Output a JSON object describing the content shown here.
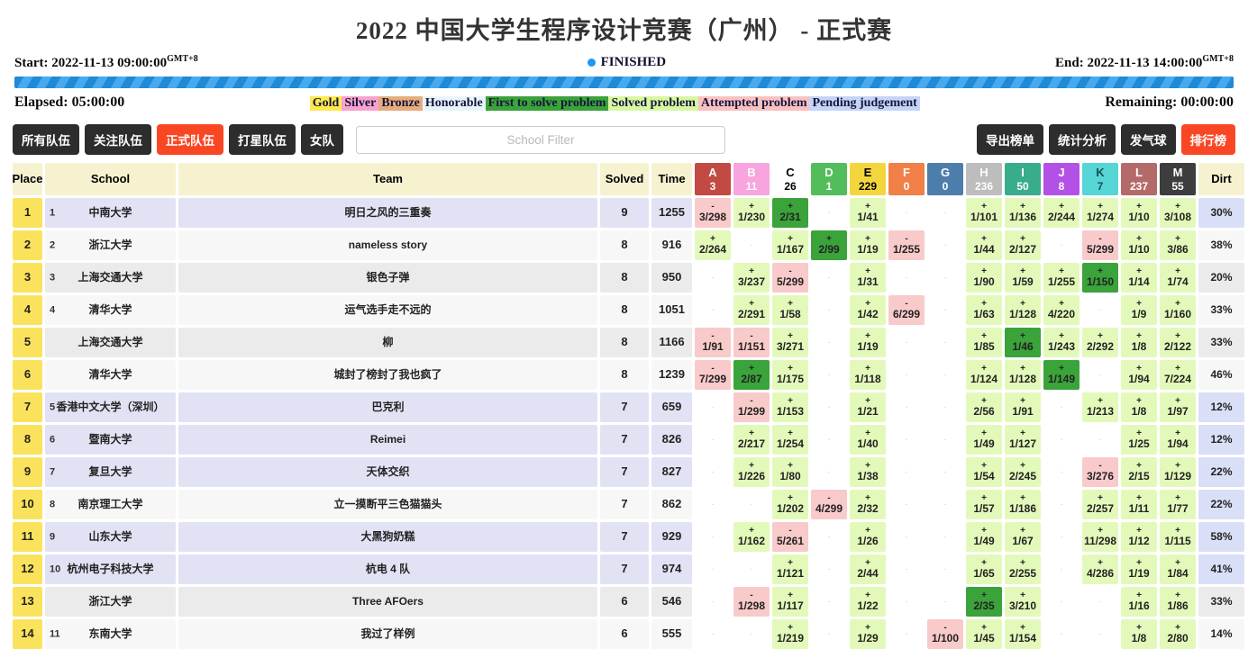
{
  "title": "2022 中国大学生程序设计竞赛（广州） - 正式赛",
  "contest": {
    "start_label": "Start: 2022-11-13 09:00:00",
    "end_label": "End: 2022-11-13 14:00:00",
    "gmt": "GMT+8",
    "status": "FINISHED",
    "elapsed_label": "Elapsed: 05:00:00",
    "remaining_label": "Remaining: 00:00:00"
  },
  "colors": {
    "accent": "#f94724",
    "status_dot": "#2196f3",
    "gold_place": "#fbe25c",
    "row_lavender": "#e2e2f5",
    "row_white": "#f7f7f7",
    "row_gray": "#ebebeb",
    "dirt_periwinkle": "#d9dff6",
    "cell_ok": "#e3f9ba",
    "cell_fts": "#3aa33a",
    "cell_fail": "#f9caca",
    "header_bg": "#f6f2d0"
  },
  "legend": [
    {
      "label": "Gold",
      "bg": "#fde94d"
    },
    {
      "label": "Silver",
      "bg": "#f7a3cd"
    },
    {
      "label": "Bronze",
      "bg": "#e6ad7c"
    },
    {
      "label": "Honorable",
      "bg": "#e8f4fb"
    },
    {
      "label": "First to solve problem",
      "bg": "#3aa33a"
    },
    {
      "label": "Solved problem",
      "bg": "#d8f7a1"
    },
    {
      "label": "Attempted problem",
      "bg": "#f9c1c1"
    },
    {
      "label": "Pending judgement",
      "bg": "#c5d5f7"
    }
  ],
  "filters": [
    {
      "label": "所有队伍",
      "active": false
    },
    {
      "label": "关注队伍",
      "active": false
    },
    {
      "label": "正式队伍",
      "active": true
    },
    {
      "label": "打星队伍",
      "active": false
    },
    {
      "label": "女队",
      "active": false
    }
  ],
  "school_filter_placeholder": "School Filter",
  "actions": [
    {
      "label": "导出榜单",
      "active": false
    },
    {
      "label": "统计分析",
      "active": false
    },
    {
      "label": "发气球",
      "active": false
    },
    {
      "label": "排行榜",
      "active": true
    }
  ],
  "table": {
    "headers": {
      "place": "Place",
      "school": "School",
      "team": "Team",
      "solved": "Solved",
      "time": "Time",
      "dirt": "Dirt"
    },
    "problems": [
      {
        "letter": "A",
        "count": "3",
        "bg": "#c34a43",
        "fg": "#ffffff"
      },
      {
        "letter": "B",
        "count": "11",
        "bg": "#f8a4de",
        "fg": "#ffffff"
      },
      {
        "letter": "C",
        "count": "26",
        "bg": "#ffffff",
        "fg": "#000000"
      },
      {
        "letter": "D",
        "count": "1",
        "bg": "#53bd5c",
        "fg": "#ffffff"
      },
      {
        "letter": "E",
        "count": "229",
        "bg": "#f3d63e",
        "fg": "#000000"
      },
      {
        "letter": "F",
        "count": "0",
        "bg": "#f08048",
        "fg": "#ffffff"
      },
      {
        "letter": "G",
        "count": "0",
        "bg": "#4c7dab",
        "fg": "#ffffff"
      },
      {
        "letter": "H",
        "count": "236",
        "bg": "#bdbdbd",
        "fg": "#ffffff"
      },
      {
        "letter": "I",
        "count": "50",
        "bg": "#39ac8c",
        "fg": "#ffffff"
      },
      {
        "letter": "J",
        "count": "8",
        "bg": "#b351e6",
        "fg": "#ffffff"
      },
      {
        "letter": "K",
        "count": "7",
        "bg": "#56d5d5",
        "fg": "#17504f"
      },
      {
        "letter": "L",
        "count": "237",
        "bg": "#b56a6a",
        "fg": "#ffffff"
      },
      {
        "letter": "M",
        "count": "55",
        "bg": "#3d3d3d",
        "fg": "#ffffff"
      }
    ],
    "rows": [
      {
        "place": "1",
        "school_rank": "1",
        "school": "中南大学",
        "team": "明日之风的三重奏",
        "solved": "9",
        "time": "1255",
        "dirt": "30%",
        "bg": "row_lavender",
        "dirt_bg": "dirt_periwinkle",
        "cells": [
          {
            "t": "fail",
            "v": "3/298"
          },
          {
            "t": "ok",
            "v": "1/230"
          },
          {
            "t": "fts",
            "v": "2/31"
          },
          {
            "t": "none"
          },
          {
            "t": "ok",
            "v": "1/41"
          },
          {
            "t": "none"
          },
          {
            "t": "none"
          },
          {
            "t": "ok",
            "v": "1/101"
          },
          {
            "t": "ok",
            "v": "1/136"
          },
          {
            "t": "ok",
            "v": "2/244"
          },
          {
            "t": "ok",
            "v": "1/274"
          },
          {
            "t": "ok",
            "v": "1/10"
          },
          {
            "t": "ok",
            "v": "3/108"
          }
        ]
      },
      {
        "place": "2",
        "school_rank": "2",
        "school": "浙江大学",
        "team": "nameless story",
        "solved": "8",
        "time": "916",
        "dirt": "38%",
        "bg": "row_white",
        "dirt_bg": "row_white",
        "cells": [
          {
            "t": "ok",
            "v": "2/264"
          },
          {
            "t": "none"
          },
          {
            "t": "ok",
            "v": "1/167"
          },
          {
            "t": "fts",
            "v": "2/99"
          },
          {
            "t": "ok",
            "v": "1/19"
          },
          {
            "t": "fail",
            "v": "1/255"
          },
          {
            "t": "none"
          },
          {
            "t": "ok",
            "v": "1/44"
          },
          {
            "t": "ok",
            "v": "2/127"
          },
          {
            "t": "none"
          },
          {
            "t": "fail",
            "v": "5/299"
          },
          {
            "t": "ok",
            "v": "1/10"
          },
          {
            "t": "ok",
            "v": "3/86"
          }
        ]
      },
      {
        "place": "3",
        "school_rank": "3",
        "school": "上海交通大学",
        "team": "银色子弹",
        "solved": "8",
        "time": "950",
        "dirt": "20%",
        "bg": "row_gray",
        "dirt_bg": "row_gray",
        "cells": [
          {
            "t": "none"
          },
          {
            "t": "ok",
            "v": "3/237"
          },
          {
            "t": "fail",
            "v": "5/299"
          },
          {
            "t": "none"
          },
          {
            "t": "ok",
            "v": "1/31"
          },
          {
            "t": "none"
          },
          {
            "t": "none"
          },
          {
            "t": "ok",
            "v": "1/90"
          },
          {
            "t": "ok",
            "v": "1/59"
          },
          {
            "t": "ok",
            "v": "1/255"
          },
          {
            "t": "fts",
            "v": "1/150"
          },
          {
            "t": "ok",
            "v": "1/14"
          },
          {
            "t": "ok",
            "v": "1/74"
          }
        ]
      },
      {
        "place": "4",
        "school_rank": "4",
        "school": "清华大学",
        "team": "运气选手走不远的",
        "solved": "8",
        "time": "1051",
        "dirt": "33%",
        "bg": "row_white",
        "dirt_bg": "row_white",
        "cells": [
          {
            "t": "none"
          },
          {
            "t": "ok",
            "v": "2/291"
          },
          {
            "t": "ok",
            "v": "1/58"
          },
          {
            "t": "none"
          },
          {
            "t": "ok",
            "v": "1/42"
          },
          {
            "t": "fail",
            "v": "6/299"
          },
          {
            "t": "none"
          },
          {
            "t": "ok",
            "v": "1/63"
          },
          {
            "t": "ok",
            "v": "1/128"
          },
          {
            "t": "ok",
            "v": "4/220"
          },
          {
            "t": "none"
          },
          {
            "t": "ok",
            "v": "1/9"
          },
          {
            "t": "ok",
            "v": "1/160"
          }
        ]
      },
      {
        "place": "5",
        "school_rank": "",
        "school": "上海交通大学",
        "team": "柳",
        "solved": "8",
        "time": "1166",
        "dirt": "33%",
        "bg": "row_gray",
        "dirt_bg": "row_gray",
        "cells": [
          {
            "t": "fail",
            "v": "1/91"
          },
          {
            "t": "fail",
            "v": "1/151"
          },
          {
            "t": "ok",
            "v": "3/271"
          },
          {
            "t": "none"
          },
          {
            "t": "ok",
            "v": "1/19"
          },
          {
            "t": "none"
          },
          {
            "t": "none"
          },
          {
            "t": "ok",
            "v": "1/85"
          },
          {
            "t": "fts",
            "v": "1/46"
          },
          {
            "t": "ok",
            "v": "1/243"
          },
          {
            "t": "ok",
            "v": "2/292"
          },
          {
            "t": "ok",
            "v": "1/8"
          },
          {
            "t": "ok",
            "v": "2/122"
          }
        ]
      },
      {
        "place": "6",
        "school_rank": "",
        "school": "清华大学",
        "team": "城封了榜封了我也疯了",
        "solved": "8",
        "time": "1239",
        "dirt": "46%",
        "bg": "row_white",
        "dirt_bg": "row_white",
        "cells": [
          {
            "t": "fail",
            "v": "7/299"
          },
          {
            "t": "fts",
            "v": "2/87"
          },
          {
            "t": "ok",
            "v": "1/175"
          },
          {
            "t": "none"
          },
          {
            "t": "ok",
            "v": "1/118"
          },
          {
            "t": "none"
          },
          {
            "t": "none"
          },
          {
            "t": "ok",
            "v": "1/124"
          },
          {
            "t": "ok",
            "v": "1/128"
          },
          {
            "t": "fts",
            "v": "1/149"
          },
          {
            "t": "none"
          },
          {
            "t": "ok",
            "v": "1/94"
          },
          {
            "t": "ok",
            "v": "7/224"
          }
        ]
      },
      {
        "place": "7",
        "school_rank": "5",
        "school": "香港中文大学（深圳）",
        "team": "巴克利",
        "solved": "7",
        "time": "659",
        "dirt": "12%",
        "bg": "row_lavender",
        "dirt_bg": "dirt_periwinkle",
        "cells": [
          {
            "t": "none"
          },
          {
            "t": "fail",
            "v": "1/299"
          },
          {
            "t": "ok",
            "v": "1/153"
          },
          {
            "t": "none"
          },
          {
            "t": "ok",
            "v": "1/21"
          },
          {
            "t": "none"
          },
          {
            "t": "none"
          },
          {
            "t": "ok",
            "v": "2/56"
          },
          {
            "t": "ok",
            "v": "1/91"
          },
          {
            "t": "none"
          },
          {
            "t": "ok",
            "v": "1/213"
          },
          {
            "t": "ok",
            "v": "1/8"
          },
          {
            "t": "ok",
            "v": "1/97"
          }
        ]
      },
      {
        "place": "8",
        "school_rank": "6",
        "school": "暨南大学",
        "team": "Reimei",
        "solved": "7",
        "time": "826",
        "dirt": "12%",
        "bg": "row_lavender",
        "dirt_bg": "dirt_periwinkle",
        "cells": [
          {
            "t": "none"
          },
          {
            "t": "ok",
            "v": "2/217"
          },
          {
            "t": "ok",
            "v": "1/254"
          },
          {
            "t": "none"
          },
          {
            "t": "ok",
            "v": "1/40"
          },
          {
            "t": "none"
          },
          {
            "t": "none"
          },
          {
            "t": "ok",
            "v": "1/49"
          },
          {
            "t": "ok",
            "v": "1/127"
          },
          {
            "t": "none"
          },
          {
            "t": "none"
          },
          {
            "t": "ok",
            "v": "1/25"
          },
          {
            "t": "ok",
            "v": "1/94"
          }
        ]
      },
      {
        "place": "9",
        "school_rank": "7",
        "school": "复旦大学",
        "team": "天体交织",
        "solved": "7",
        "time": "827",
        "dirt": "22%",
        "bg": "row_lavender",
        "dirt_bg": "dirt_periwinkle",
        "cells": [
          {
            "t": "none"
          },
          {
            "t": "ok",
            "v": "1/226"
          },
          {
            "t": "ok",
            "v": "1/80"
          },
          {
            "t": "none"
          },
          {
            "t": "ok",
            "v": "1/38"
          },
          {
            "t": "none"
          },
          {
            "t": "none"
          },
          {
            "t": "ok",
            "v": "1/54"
          },
          {
            "t": "ok",
            "v": "2/245"
          },
          {
            "t": "none"
          },
          {
            "t": "fail",
            "v": "3/276"
          },
          {
            "t": "ok",
            "v": "2/15"
          },
          {
            "t": "ok",
            "v": "1/129"
          }
        ]
      },
      {
        "place": "10",
        "school_rank": "8",
        "school": "南京理工大学",
        "team": "立一摸断平三色猫猫头",
        "solved": "7",
        "time": "862",
        "dirt": "22%",
        "bg": "row_white",
        "dirt_bg": "dirt_periwinkle",
        "cells": [
          {
            "t": "none"
          },
          {
            "t": "none"
          },
          {
            "t": "ok",
            "v": "1/202"
          },
          {
            "t": "fail",
            "v": "4/299"
          },
          {
            "t": "ok",
            "v": "2/32"
          },
          {
            "t": "none"
          },
          {
            "t": "none"
          },
          {
            "t": "ok",
            "v": "1/57"
          },
          {
            "t": "ok",
            "v": "1/186"
          },
          {
            "t": "none"
          },
          {
            "t": "ok",
            "v": "2/257"
          },
          {
            "t": "ok",
            "v": "1/11"
          },
          {
            "t": "ok",
            "v": "1/77"
          }
        ]
      },
      {
        "place": "11",
        "school_rank": "9",
        "school": "山东大学",
        "team": "大黑狗奶糕",
        "solved": "7",
        "time": "929",
        "dirt": "58%",
        "bg": "row_lavender",
        "dirt_bg": "dirt_periwinkle",
        "cells": [
          {
            "t": "none"
          },
          {
            "t": "ok",
            "v": "1/162"
          },
          {
            "t": "fail",
            "v": "5/261"
          },
          {
            "t": "none"
          },
          {
            "t": "ok",
            "v": "1/26"
          },
          {
            "t": "none"
          },
          {
            "t": "none"
          },
          {
            "t": "ok",
            "v": "1/49"
          },
          {
            "t": "ok",
            "v": "1/67"
          },
          {
            "t": "none"
          },
          {
            "t": "ok",
            "v": "11/298"
          },
          {
            "t": "ok",
            "v": "1/12"
          },
          {
            "t": "ok",
            "v": "1/115"
          }
        ]
      },
      {
        "place": "12",
        "school_rank": "10",
        "school": "杭州电子科技大学",
        "team": "杭电 4 队",
        "solved": "7",
        "time": "974",
        "dirt": "41%",
        "bg": "row_lavender",
        "dirt_bg": "dirt_periwinkle",
        "cells": [
          {
            "t": "none"
          },
          {
            "t": "none"
          },
          {
            "t": "ok",
            "v": "1/121"
          },
          {
            "t": "none"
          },
          {
            "t": "ok",
            "v": "2/44"
          },
          {
            "t": "none"
          },
          {
            "t": "none"
          },
          {
            "t": "ok",
            "v": "1/65"
          },
          {
            "t": "ok",
            "v": "2/255"
          },
          {
            "t": "none"
          },
          {
            "t": "ok",
            "v": "4/286"
          },
          {
            "t": "ok",
            "v": "1/19"
          },
          {
            "t": "ok",
            "v": "1/84"
          }
        ]
      },
      {
        "place": "13",
        "school_rank": "",
        "school": "浙江大学",
        "team": "Three AFOers",
        "solved": "6",
        "time": "546",
        "dirt": "33%",
        "bg": "row_gray",
        "dirt_bg": "row_gray",
        "cells": [
          {
            "t": "none"
          },
          {
            "t": "fail",
            "v": "1/298"
          },
          {
            "t": "ok",
            "v": "1/117"
          },
          {
            "t": "none"
          },
          {
            "t": "ok",
            "v": "1/22"
          },
          {
            "t": "none"
          },
          {
            "t": "none"
          },
          {
            "t": "fts",
            "v": "2/35"
          },
          {
            "t": "ok",
            "v": "3/210"
          },
          {
            "t": "none"
          },
          {
            "t": "none"
          },
          {
            "t": "ok",
            "v": "1/16"
          },
          {
            "t": "ok",
            "v": "1/86"
          }
        ]
      },
      {
        "place": "14",
        "school_rank": "11",
        "school": "东南大学",
        "team": "我过了样例",
        "solved": "6",
        "time": "555",
        "dirt": "14%",
        "bg": "row_white",
        "dirt_bg": "row_white",
        "cells": [
          {
            "t": "none"
          },
          {
            "t": "none"
          },
          {
            "t": "ok",
            "v": "1/219"
          },
          {
            "t": "none"
          },
          {
            "t": "ok",
            "v": "1/29"
          },
          {
            "t": "none"
          },
          {
            "t": "fail",
            "v": "1/100"
          },
          {
            "t": "ok",
            "v": "1/45"
          },
          {
            "t": "ok",
            "v": "1/154"
          },
          {
            "t": "none"
          },
          {
            "t": "none"
          },
          {
            "t": "ok",
            "v": "1/8"
          },
          {
            "t": "ok",
            "v": "2/80"
          }
        ]
      }
    ],
    "cell_symbols": {
      "ok": "+",
      "fts": "+",
      "fail": "-",
      "none": "·"
    }
  }
}
